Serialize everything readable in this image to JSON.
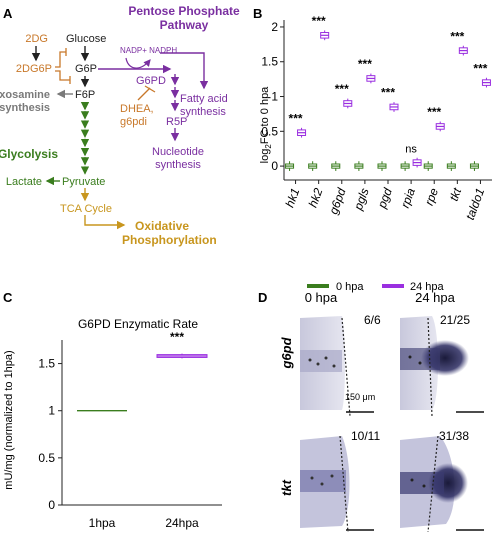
{
  "panel_a": {
    "letter": "A",
    "glucose": "Glucose",
    "g6p": "G6P",
    "f6p": "F6P",
    "inhibitor_2dg": "2DG",
    "inhibitor_2dg6p": "2DG6P",
    "hexosamine_line1": "Hexosamine",
    "hexosamine_line2": "Biosynthesis",
    "glycolysis": "Glycolysis",
    "lactate": "Lactate",
    "pyruvate": "Pyruvate",
    "tca": "TCA Cycle",
    "oxphos_line1": "Oxidative",
    "oxphos_line2": "Phosphorylation",
    "ppp_line1": "Pentose Phosphate",
    "ppp_line2": "Pathway",
    "nadp": "NADP+ NADPH",
    "g6pd": "G6PD",
    "dhea_line1": "DHEA,",
    "dhea_line2": "g6pdi",
    "fatty_line1": "Fatty acid",
    "fatty_line2": "synthesis",
    "r5p": "R5P",
    "nucleotide_line1": "Nucleotide",
    "nucleotide_line2": "synthesis",
    "colors": {
      "black": "#222222",
      "orange": "#c8782a",
      "green": "#3a7d1e",
      "purple": "#7a2fa0",
      "gray": "#7a7a7a",
      "gold": "#c8961e"
    }
  },
  "panel_b": {
    "letter": "B",
    "ylabel_main": "log",
    "ylabel_sub": "2",
    "ylabel_rest": "FC to 0 hpa",
    "legend_0": "0 hpa",
    "legend_24": "24 hpa",
    "colors": {
      "hpa0": "#3a7d1e",
      "hpa24": "#9a2fe0"
    }
  },
  "panel_c": {
    "letter": "C",
    "title": "G6PD Enzymatic Rate",
    "ylabel": "mU/mg (normalized to 1hpa)",
    "colors": {
      "hpa1": "#3a7d1e",
      "hpa24": "#9a2fe0"
    }
  },
  "panel_d": {
    "letter": "D",
    "col_0": "0 hpa",
    "col_24": "24 hpa",
    "row_g6pd": "g6pd",
    "row_tkt": "tkt",
    "count_g6pd_0": "6/6",
    "count_g6pd_24": "21/25",
    "count_tkt_0": "10/11",
    "count_tkt_24": "31/38",
    "scale_label": "150 μm",
    "stain_color": "#2a2a6a"
  },
  "chart_data": [
    {
      "type": "box",
      "panel": "B",
      "categories": [
        "hk1",
        "hk2",
        "g6pd",
        "pgls",
        "pgd",
        "rpia",
        "rpe",
        "tkt",
        "taldo1"
      ],
      "series": [
        {
          "name": "0 hpa",
          "values": [
            0,
            0,
            0,
            0,
            0,
            0,
            0,
            0,
            0
          ]
        },
        {
          "name": "24 hpa",
          "values": [
            0.48,
            1.88,
            0.9,
            1.26,
            0.85,
            0.05,
            0.57,
            1.66,
            1.2
          ]
        }
      ],
      "significance": [
        "***",
        "***",
        "***",
        "***",
        "***",
        "ns",
        "***",
        "***",
        "***"
      ],
      "ylabel": "log2FC to 0 hpa",
      "ylim": [
        -0.2,
        2.1
      ],
      "yticks": [
        0,
        0.5,
        1,
        1.5,
        2
      ],
      "legend": "bottom"
    },
    {
      "type": "box",
      "panel": "C",
      "title": "G6PD Enzymatic Rate",
      "categories": [
        "1hpa",
        "24hpa"
      ],
      "values": [
        1.0,
        1.58
      ],
      "significance": [
        "",
        "***"
      ],
      "ylabel": "mU/mg (normalized to 1hpa)",
      "ylim": [
        0,
        1.75
      ],
      "yticks": [
        0,
        0.5,
        1,
        1.5
      ]
    }
  ]
}
